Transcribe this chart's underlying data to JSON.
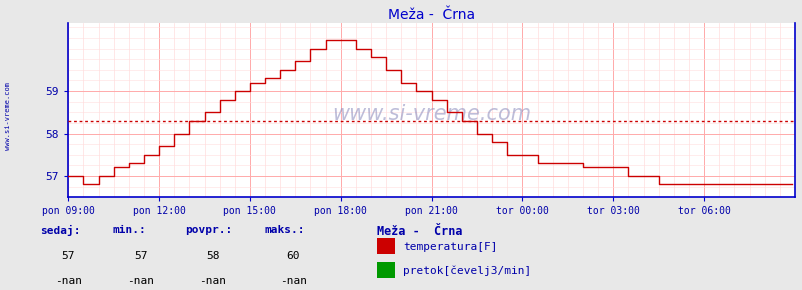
{
  "title": "Meža -  Črna",
  "title_color": "#0000cc",
  "bg_color": "#e8e8e8",
  "plot_bg_color": "#ffffff",
  "grid_color_major": "#ffaaaa",
  "grid_color_minor": "#ffdddd",
  "line_color": "#cc0000",
  "avg_line_color": "#cc0000",
  "avg_value": 58.3,
  "x_tick_labels": [
    "pon 09:00",
    "pon 12:00",
    "pon 15:00",
    "pon 18:00",
    "pon 21:00",
    "tor 00:00",
    "tor 03:00",
    "tor 06:00"
  ],
  "x_tick_positions": [
    0,
    3,
    6,
    9,
    12,
    15,
    18,
    21
  ],
  "y_min": 56.5,
  "y_max": 60.6,
  "y_ticks": [
    57,
    58,
    59
  ],
  "tick_label_color": "#0000aa",
  "axis_color": "#0000cc",
  "spine_color": "#0000cc",
  "watermark": "www.si-vreme.com",
  "legend_title": "Meža -  Črna",
  "legend_items": [
    {
      "label": "temperatura[F]",
      "color": "#cc0000"
    },
    {
      "label": "pretok[čevelj3/min]",
      "color": "#009900"
    }
  ],
  "stat_labels": [
    "sedaj:",
    "min.:",
    "povpr.:",
    "maks.:"
  ],
  "stat_values_temp": [
    "57",
    "57",
    "58",
    "60"
  ],
  "stat_values_flow": [
    "-nan",
    "-nan",
    "-nan",
    "-nan"
  ],
  "label_color": "#0000aa",
  "value_color": "#000000",
  "sidebar_text": "www.si-vreme.com"
}
